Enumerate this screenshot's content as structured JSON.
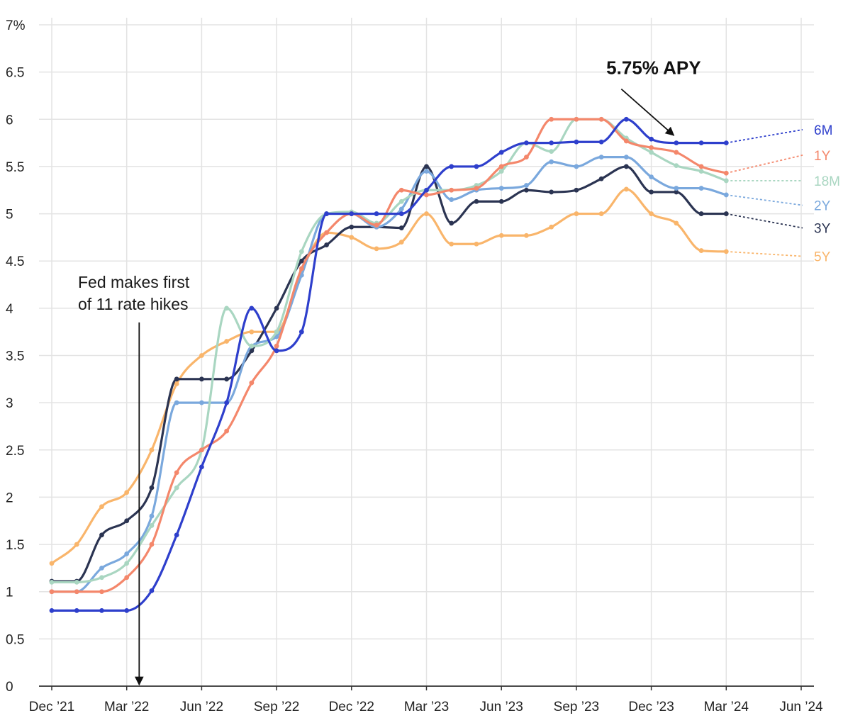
{
  "chart_data": {
    "type": "line",
    "title": "",
    "xlabel": "",
    "ylabel": "",
    "ylim": [
      0,
      7
    ],
    "yticks": [
      0,
      0.5,
      1,
      1.5,
      2,
      2.5,
      3,
      3.5,
      4,
      4.5,
      5,
      5.5,
      6,
      6.5,
      7
    ],
    "ytick_labels": [
      "0",
      "0.5",
      "1",
      "1.5",
      "2",
      "2.5",
      "3",
      "3.5",
      "4",
      "4.5",
      "5",
      "5.5",
      "6",
      "6.5",
      "7%"
    ],
    "xlim": [
      0,
      30
    ],
    "xticks": [
      {
        "label": "Dec ’21",
        "value": 0
      },
      {
        "label": "Mar ’22",
        "value": 3
      },
      {
        "label": "Jun ’22",
        "value": 6
      },
      {
        "label": "Sep ’22",
        "value": 9
      },
      {
        "label": "Dec ’22",
        "value": 12
      },
      {
        "label": "Mar ’23",
        "value": 15
      },
      {
        "label": "Jun ’23",
        "value": 18
      },
      {
        "label": "Sep ’23",
        "value": 21
      },
      {
        "label": "Dec ’23",
        "value": 24
      },
      {
        "label": "Mar ’24",
        "value": 27
      },
      {
        "label": "Jun ’24",
        "value": 30
      }
    ],
    "grid": true,
    "series": [
      {
        "name": "5Y",
        "color": "#f9b56b",
        "x": [
          0,
          1,
          2,
          3,
          4,
          5,
          6,
          7,
          8,
          9,
          10,
          11,
          12,
          13,
          14,
          15,
          16,
          17,
          18,
          19,
          20,
          21,
          22,
          23,
          24,
          25,
          26,
          27
        ],
        "values": [
          1.3,
          1.5,
          1.9,
          2.05,
          2.5,
          3.2,
          3.5,
          3.65,
          3.75,
          3.75,
          4.4,
          4.8,
          4.75,
          4.63,
          4.7,
          5.0,
          4.68,
          4.68,
          4.77,
          4.77,
          4.86,
          5.0,
          5.0,
          5.26,
          5.0,
          4.9,
          4.61,
          4.6
        ],
        "projection": 4.55
      },
      {
        "name": "3Y",
        "color": "#2b3452",
        "x": [
          0,
          1,
          2,
          3,
          4,
          5,
          6,
          7,
          8,
          9,
          10,
          11,
          12,
          13,
          14,
          15,
          16,
          17,
          18,
          19,
          20,
          21,
          22,
          23,
          24,
          25,
          26,
          27
        ],
        "values": [
          1.11,
          1.11,
          1.6,
          1.75,
          2.1,
          3.25,
          3.25,
          3.25,
          3.55,
          4.0,
          4.5,
          4.67,
          4.86,
          4.86,
          4.85,
          5.5,
          4.9,
          5.13,
          5.13,
          5.25,
          5.23,
          5.25,
          5.37,
          5.5,
          5.23,
          5.23,
          5.0,
          5.0
        ],
        "projection": 4.85
      },
      {
        "name": "2Y",
        "color": "#7aa8dd",
        "x": [
          0,
          1,
          2,
          3,
          4,
          5,
          6,
          7,
          8,
          9,
          10,
          11,
          12,
          13,
          14,
          15,
          16,
          17,
          18,
          19,
          20,
          21,
          22,
          23,
          24,
          25,
          26,
          27
        ],
        "values": [
          1.0,
          1.0,
          1.25,
          1.4,
          1.8,
          3.0,
          3.0,
          3.0,
          3.6,
          3.7,
          4.35,
          5.0,
          5.0,
          4.86,
          5.05,
          5.45,
          5.15,
          5.25,
          5.27,
          5.3,
          5.55,
          5.5,
          5.6,
          5.6,
          5.39,
          5.27,
          5.27,
          5.2
        ],
        "projection": 5.09
      },
      {
        "name": "18M",
        "color": "#a9d6c1",
        "x": [
          0,
          1,
          2,
          3,
          4,
          5,
          6,
          7,
          8,
          9,
          10,
          11,
          12,
          13,
          14,
          15,
          16,
          17,
          18,
          19,
          20,
          21,
          22,
          23,
          24,
          25,
          26,
          27
        ],
        "values": [
          1.1,
          1.1,
          1.15,
          1.3,
          1.7,
          2.1,
          2.5,
          4.0,
          3.6,
          3.75,
          4.6,
          5.0,
          5.02,
          4.9,
          5.13,
          5.25,
          5.25,
          5.3,
          5.45,
          5.75,
          5.66,
          6.0,
          6.0,
          5.8,
          5.65,
          5.51,
          5.45,
          5.35
        ],
        "projection": 5.35
      },
      {
        "name": "1Y",
        "color": "#f4876b",
        "x": [
          0,
          1,
          2,
          3,
          4,
          5,
          6,
          7,
          8,
          9,
          10,
          11,
          12,
          13,
          14,
          15,
          16,
          17,
          18,
          19,
          20,
          21,
          22,
          23,
          24,
          25,
          26,
          27
        ],
        "values": [
          1.0,
          1.0,
          1.0,
          1.15,
          1.5,
          2.26,
          2.5,
          2.7,
          3.21,
          3.6,
          4.42,
          4.8,
          5.0,
          4.88,
          5.25,
          5.2,
          5.25,
          5.27,
          5.5,
          5.6,
          6.0,
          6.0,
          6.0,
          5.77,
          5.7,
          5.65,
          5.5,
          5.43
        ],
        "projection": 5.62
      },
      {
        "name": "6M",
        "color": "#2e3fcc",
        "x": [
          0,
          1,
          2,
          3,
          4,
          5,
          6,
          7,
          8,
          9,
          10,
          11,
          12,
          13,
          14,
          15,
          16,
          17,
          18,
          19,
          20,
          21,
          22,
          23,
          24,
          25,
          26,
          27
        ],
        "values": [
          0.8,
          0.8,
          0.8,
          0.8,
          1.01,
          1.6,
          2.32,
          3.0,
          4.0,
          3.55,
          3.75,
          5.0,
          5.0,
          5.0,
          5.0,
          5.25,
          5.5,
          5.5,
          5.65,
          5.75,
          5.75,
          5.76,
          5.76,
          6.0,
          5.79,
          5.75,
          5.75,
          5.75
        ],
        "projection": 5.89
      }
    ],
    "projection_x": 30,
    "annotations": [
      {
        "lines": [
          "Fed makes first",
          "of 11 rate hikes"
        ],
        "arrow_x": 3.5,
        "arrow_from": 3.85,
        "arrow_to": 0
      },
      {
        "text": "5.75% APY",
        "arrow_from_x": 22.8,
        "arrow_from_y": 6.32,
        "arrow_to_x": 24.9,
        "arrow_to_y": 5.83,
        "label_x": 22.2,
        "label_y": 6.48
      }
    ]
  }
}
